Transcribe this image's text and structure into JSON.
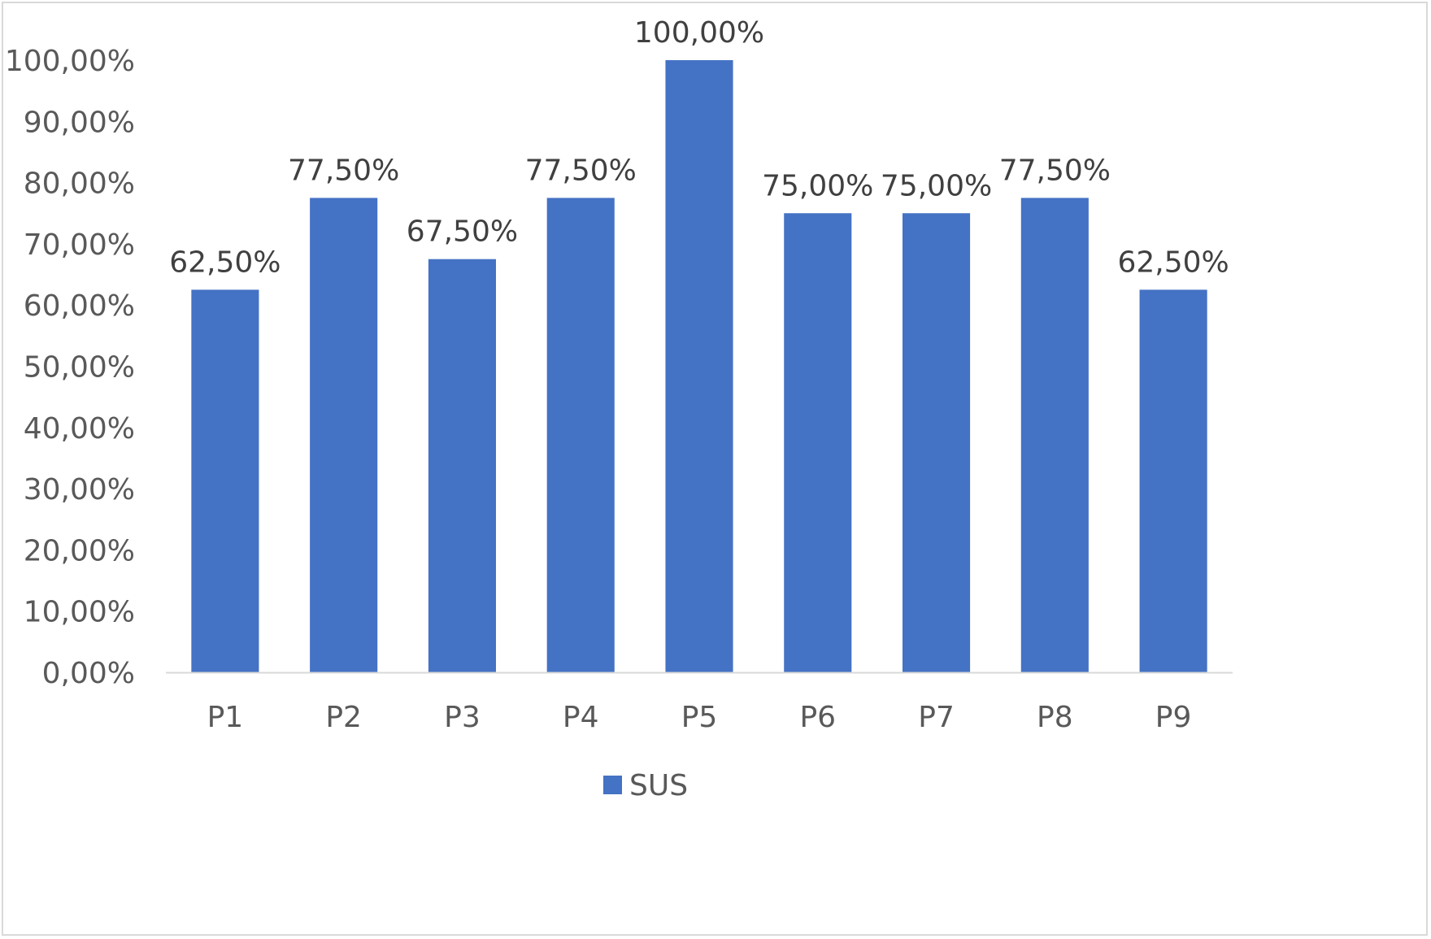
{
  "chart_data": {
    "type": "bar",
    "categories": [
      "P1",
      "P2",
      "P3",
      "P4",
      "P5",
      "P6",
      "P7",
      "P8",
      "P9"
    ],
    "series": [
      {
        "name": "SUS",
        "values": [
          62.5,
          77.5,
          67.5,
          77.5,
          100.0,
          75.0,
          75.0,
          77.5,
          62.5
        ],
        "data_labels": [
          "62,50%",
          "77,50%",
          "67,50%",
          "77,50%",
          "100,00%",
          "75,00%",
          "75,00%",
          "77,50%",
          "62,50%"
        ],
        "color": "#4472C4"
      }
    ],
    "ylim": [
      0,
      100
    ],
    "y_ticks": [
      0,
      10,
      20,
      30,
      40,
      50,
      60,
      70,
      80,
      90,
      100
    ],
    "y_tick_labels": [
      "0,00%",
      "10,00%",
      "20,00%",
      "30,00%",
      "40,00%",
      "50,00%",
      "60,00%",
      "70,00%",
      "80,00%",
      "90,00%",
      "100,00%"
    ],
    "title": "",
    "xlabel": "",
    "ylabel": "",
    "grid": false,
    "legend": {
      "placement": "bottom-center",
      "entries": [
        "SUS"
      ]
    },
    "colors": {
      "bar": "#4472C4",
      "axis": "#d9d9d9",
      "tick_text": "#595959",
      "label_text": "#404040"
    }
  }
}
